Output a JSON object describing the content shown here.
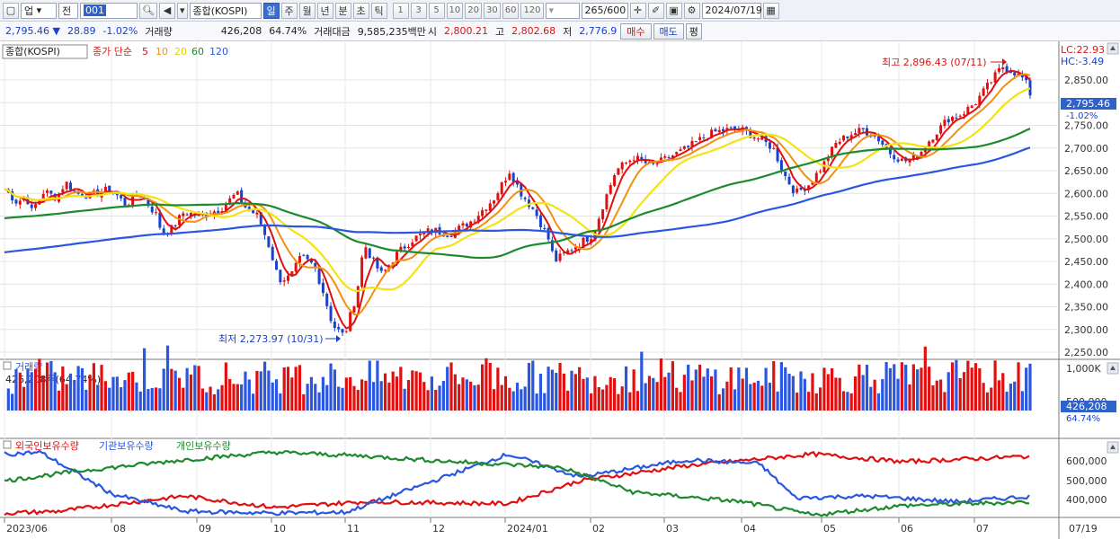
{
  "toolbar": {
    "market_label": "업",
    "prev_label": "전",
    "code_value": "001",
    "name_value": "종합(KOSPI)",
    "period_tabs": [
      "일",
      "주",
      "월",
      "년",
      "분",
      "초",
      "틱"
    ],
    "period_selected": 0,
    "intervals": [
      "1",
      "3",
      "5",
      "10",
      "20",
      "30",
      "60",
      "120"
    ],
    "count_value": "265/600",
    "date_value": "2024/07/19"
  },
  "quote": {
    "price": "2,795.46 ▼",
    "change": "28.89",
    "change_pct": "-1.02%",
    "volume_label": "거래량",
    "volume_value": "426,208",
    "volume_ratio": "64.74%",
    "amount_label": "거래대금",
    "amount_value": "9,585,235백만",
    "open_label": "시",
    "open_value": "2,800.21",
    "high_label": "고",
    "high_value": "2,802.68",
    "low_label": "저",
    "low_value": "2,776.9",
    "buy_label": "매수",
    "sell_label": "매도",
    "eval_label": "평"
  },
  "price_panel": {
    "title": "종합(KOSPI)",
    "ma_label": "종가 단순",
    "ma_periods": [
      "5",
      "10",
      "20",
      "60",
      "120"
    ],
    "ma_colors": [
      "#e01010",
      "#f39012",
      "#f2e311",
      "#1e8a2e",
      "#2a56e0"
    ],
    "lc_label": "LC:22.93",
    "hc_label": "HC:-3.49",
    "high_annotation": "최고 2,896.43 (07/11)",
    "low_annotation": "최저 2,273.97 (10/31)",
    "last_price": "2,795.46",
    "last_change": "-1.02%",
    "y_ticks": [
      "2,850.00",
      "2,800.00",
      "2,750.00",
      "2,700.00",
      "2,650.00",
      "2,600.00",
      "2,550.00",
      "2,500.00",
      "2,450.00",
      "2,400.00",
      "2,350.00",
      "2,300.00",
      "2,250.00"
    ]
  },
  "volume_panel": {
    "title": "거래량",
    "info": "426,208주(64.74%)",
    "y_ticks": [
      "1,000K",
      "500,000"
    ],
    "last_value": "426,208",
    "last_pct": "64.74%"
  },
  "investor_panel": {
    "foreign_label": "외국인보유수량",
    "inst_label": "기관보유수량",
    "individual_label": "개인보유수량",
    "colors": [
      "#e01010",
      "#2a56e0",
      "#1e8a2e"
    ],
    "y_ticks": [
      "600,000",
      "500,000",
      "400,000"
    ]
  },
  "x_axis": {
    "labels": [
      "2023/06",
      "08",
      "09",
      "10",
      "11",
      "12",
      "2024/01",
      "02",
      "03",
      "04",
      "05",
      "06",
      "07",
      "07/19"
    ]
  }
}
